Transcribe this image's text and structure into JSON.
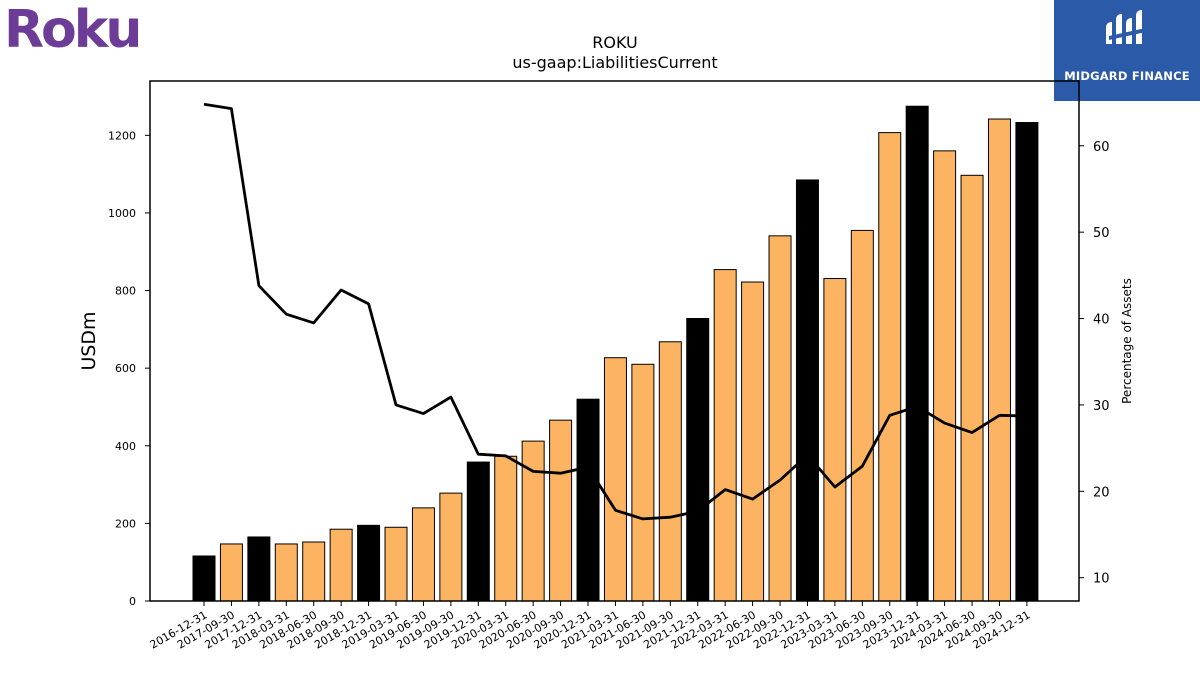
{
  "logos": {
    "left_text": "Roku",
    "left_color": "#6c3c97",
    "right_text": "MIDGARD FINANCE",
    "right_bg": "#2b5aa8"
  },
  "chart_data": {
    "type": "bar",
    "title": "ROKU",
    "subtitle": "us-gaap:LiabilitiesCurrent",
    "ylabel": "USDm",
    "y2label": "Percentage of Assets",
    "ylim": [
      0,
      1340
    ],
    "y2lim": [
      7.3,
      67.5
    ],
    "yticks": [
      0,
      200,
      400,
      600,
      800,
      1000,
      1200
    ],
    "y2ticks": [
      10,
      20,
      30,
      40,
      50,
      60
    ],
    "bar_color_quarter": "#fdb462",
    "bar_color_year_end": "#000000",
    "line_color": "#000000",
    "categories": [
      "2016-12-31",
      "2017-09-30",
      "2017-12-31",
      "2018-03-31",
      "2018-06-30",
      "2018-09-30",
      "2018-12-31",
      "2019-03-31",
      "2019-06-30",
      "2019-09-30",
      "2019-12-31",
      "2020-03-31",
      "2020-06-30",
      "2020-09-30",
      "2020-12-31",
      "2021-03-31",
      "2021-06-30",
      "2021-09-30",
      "2021-12-31",
      "2022-03-31",
      "2022-06-30",
      "2022-09-30",
      "2022-12-31",
      "2023-03-31",
      "2023-06-30",
      "2023-09-30",
      "2023-12-31",
      "2024-03-31",
      "2024-06-30",
      "2024-09-30",
      "2024-12-31"
    ],
    "series": [
      {
        "type": "bar",
        "values": [
          116,
          147,
          165,
          147,
          152,
          185,
          195,
          190,
          240,
          278,
          358,
          373,
          412,
          466,
          520,
          627,
          610,
          668,
          728,
          854,
          822,
          941,
          1085,
          831,
          955,
          1207,
          1275,
          1160,
          1097,
          1242,
          1233
        ]
      },
      {
        "type": "line",
        "axis": "right",
        "values": [
          64.8,
          64.3,
          43.8,
          40.5,
          39.5,
          43.3,
          41.7,
          30.0,
          29.0,
          30.9,
          24.3,
          24.1,
          22.3,
          22.1,
          22.8,
          17.8,
          16.8,
          17.0,
          17.7,
          20.2,
          19.1,
          21.3,
          24.2,
          20.5,
          22.9,
          28.8,
          29.8,
          27.9,
          26.8,
          28.8,
          28.7
        ]
      }
    ]
  }
}
